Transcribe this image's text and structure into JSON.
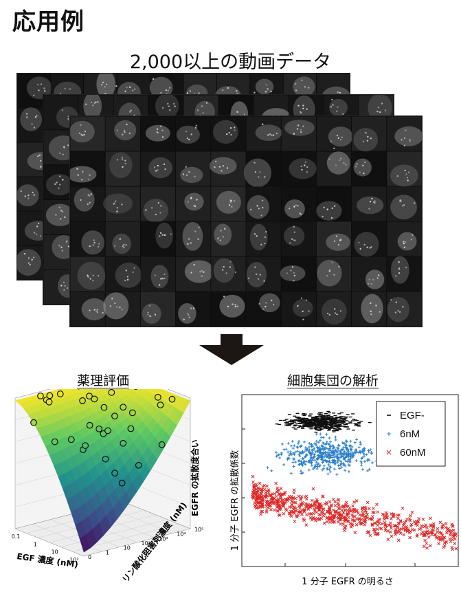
{
  "page": {
    "title": "応用例"
  },
  "mosaic": {
    "caption": "2,000以上の動画データ"
  },
  "left_panel": {
    "title": "薬理評価",
    "x_axis_label": "EGF 濃度 (nM)",
    "y_axis_label": "リン酸化阻害剤濃度 (nM)",
    "z_axis_label": "EGFR の拡散度合い",
    "x_ticks": [
      "0.1",
      "1",
      "10",
      "10²"
    ],
    "y_ticks": [
      "0",
      "1",
      "10",
      "10²",
      "10³",
      "10⁴",
      "10⁵"
    ]
  },
  "right_panel": {
    "title": "細胞集団の解析",
    "x_axis_label": "1 分子 EGFR の明るさ",
    "y_axis_label": "1 分子 EGFR の拡散係数"
  },
  "chart_data": [
    {
      "type": "scatter",
      "title": "細胞集団の解析",
      "xlabel": "1 分子 EGFR の明るさ",
      "ylabel": "1 分子 EGFR の拡散係数",
      "legend_position": "top-right",
      "grid": false,
      "series": [
        {
          "name": "EGF-",
          "marker": "-",
          "color": "#111111",
          "cluster": {
            "x": [
              0.12,
              0.62
            ],
            "y": [
              0.76,
              0.92
            ]
          },
          "count": 500
        },
        {
          "name": "6nM",
          "marker": "+",
          "color": "#2a7fc9",
          "cluster": {
            "x": [
              0.05,
              0.75
            ],
            "y": [
              0.5,
              0.8
            ]
          },
          "count": 450
        },
        {
          "name": "60nM",
          "marker": "×",
          "color": "#dd2626",
          "cluster": {
            "x": [
              0.05,
              1.0
            ],
            "y": [
              0.05,
              0.55
            ]
          },
          "count": 700
        }
      ]
    },
    {
      "type": "surface",
      "title": "薬理評価",
      "xlabel": "EGF 濃度 (nM)",
      "ylabel": "リン酸化阻害剤濃度 (nM)",
      "zlabel": "EGFR の拡散度合い",
      "colormap": [
        "#440154",
        "#3b528b",
        "#21918c",
        "#5ec962",
        "#fde725"
      ]
    }
  ]
}
